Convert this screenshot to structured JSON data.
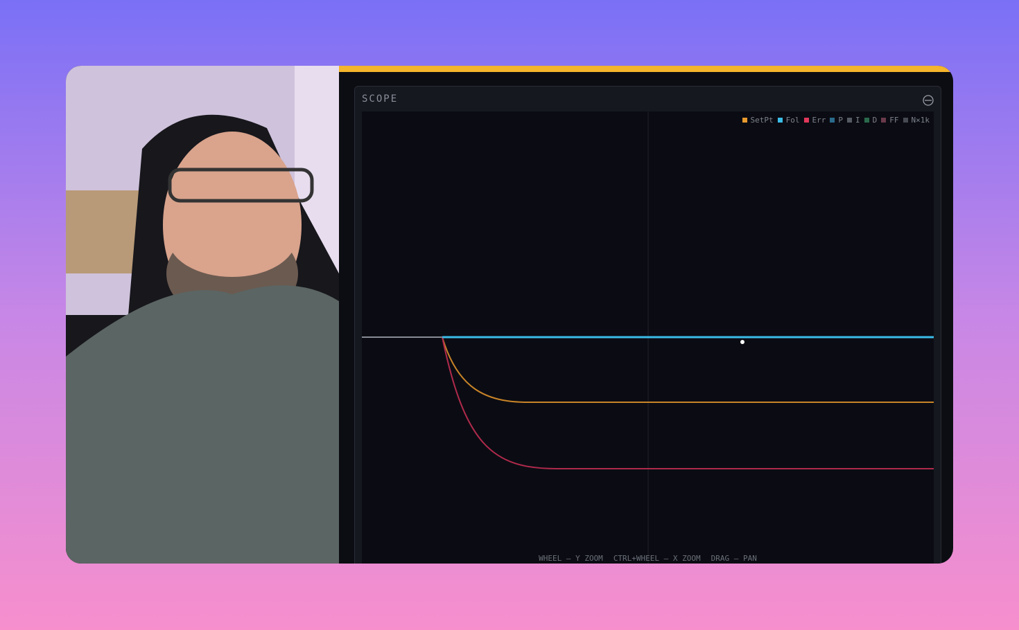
{
  "scope": {
    "title": "SCOPE",
    "legend": [
      {
        "name": "SetPt",
        "color": "#e89a2e"
      },
      {
        "name": "Fol",
        "color": "#3bbde8"
      },
      {
        "name": "Err",
        "color": "#e0385a"
      },
      {
        "name": "P",
        "color": "#2a6a8a"
      },
      {
        "name": "I",
        "color": "#555a63"
      },
      {
        "name": "D",
        "color": "#2a6a4c"
      },
      {
        "name": "FF",
        "color": "#6a3a4a"
      },
      {
        "name": "N×1k",
        "color": "#474a52"
      }
    ],
    "hints": [
      "WHEEL — Y ZOOM",
      "CTRL+WHEEL — X ZOOM",
      "DRAG — PAN"
    ]
  }
}
